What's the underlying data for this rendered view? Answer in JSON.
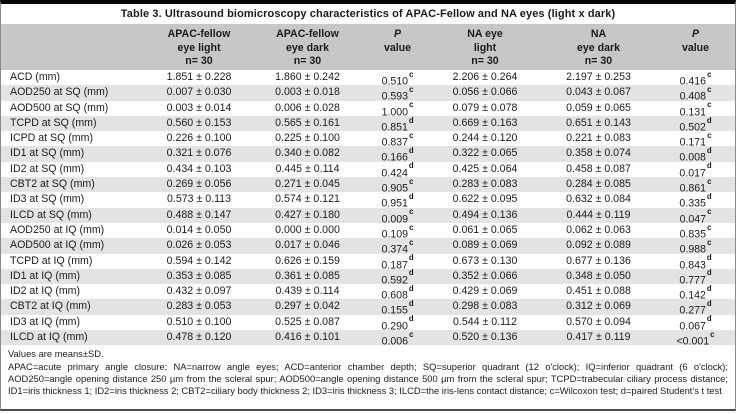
{
  "title": "Table 3. Ultrasound biomicroscopy characteristics of APAC-Fellow and NA eyes (light x dark)",
  "header": {
    "columns": [
      {
        "line1": "APAC-fellow",
        "line2": "eye light",
        "line3": "n= 30"
      },
      {
        "line1": "APAC-fellow",
        "line2": "eye dark",
        "line3": "n= 30"
      },
      {
        "line1": "P",
        "line2": "value",
        "line3": ""
      },
      {
        "line1": "NA eye",
        "line2": "light",
        "line3": "n= 30"
      },
      {
        "line1": "NA",
        "line2": "eye dark",
        "line3": "n= 30"
      },
      {
        "line1": "P",
        "line2": "value",
        "line3": ""
      }
    ]
  },
  "rows": [
    {
      "param": "ACD (mm)",
      "apac_light": "1.851 ± 0.228",
      "apac_dark": "1.860 ± 0.242",
      "p1": "0.510",
      "p1_sup": "c",
      "na_light": "2.206 ± 0.264",
      "na_dark": "2.197 ± 0.253",
      "p2": "0.416",
      "p2_sup": "c"
    },
    {
      "param": "AOD250 at SQ (mm)",
      "apac_light": "0.007 ± 0.030",
      "apac_dark": "0.003 ± 0.018",
      "p1": "0.593",
      "p1_sup": "c",
      "na_light": "0.056 ± 0.066",
      "na_dark": "0.043 ± 0.067",
      "p2": "0.408",
      "p2_sup": "c"
    },
    {
      "param": "AOD500 at SQ (mm)",
      "apac_light": "0.003 ± 0.014",
      "apac_dark": "0.006 ± 0.028",
      "p1": "1.000",
      "p1_sup": "c",
      "na_light": "0.079 ± 0.078",
      "na_dark": "0.059 ± 0.065",
      "p2": "0.131",
      "p2_sup": "c"
    },
    {
      "param": "TCPD at SQ (mm)",
      "apac_light": "0.560 ± 0.153",
      "apac_dark": "0.565 ± 0.161",
      "p1": "0.851",
      "p1_sup": "d",
      "na_light": "0.669 ± 0.163",
      "na_dark": "0.651 ± 0.143",
      "p2": "0.502",
      "p2_sup": "d"
    },
    {
      "param": "ICPD at SQ (mm)",
      "apac_light": "0.226 ± 0.100",
      "apac_dark": "0.225 ± 0.100",
      "p1": "0.837",
      "p1_sup": "c",
      "na_light": "0.244 ± 0.120",
      "na_dark": "0.221 ± 0.083",
      "p2": "0.171",
      "p2_sup": "c"
    },
    {
      "param": "ID1 at SQ (mm)",
      "apac_light": "0.321 ± 0.076",
      "apac_dark": "0.340 ± 0.082",
      "p1": "0.166",
      "p1_sup": "d",
      "na_light": "0.322 ± 0.065",
      "na_dark": "0.358 ± 0.074",
      "p2": "0.008",
      "p2_sup": "d"
    },
    {
      "param": "ID2 at SQ (mm)",
      "apac_light": "0.434 ± 0.103",
      "apac_dark": "0.445 ± 0.114",
      "p1": "0.424",
      "p1_sup": "d",
      "na_light": "0.425 ± 0.064",
      "na_dark": "0.458 ± 0.087",
      "p2": "0.017",
      "p2_sup": "d"
    },
    {
      "param": "CBT2 at SQ (mm)",
      "apac_light": "0.269 ± 0.056",
      "apac_dark": "0.271 ± 0.045",
      "p1": "0.905",
      "p1_sup": "c",
      "na_light": "0.283 ± 0.083",
      "na_dark": "0.284 ± 0.085",
      "p2": "0.861",
      "p2_sup": "c"
    },
    {
      "param": "ID3 at SQ (mm)",
      "apac_light": "0.573 ± 0.113",
      "apac_dark": "0.574 ± 0.121",
      "p1": "0.951",
      "p1_sup": "d",
      "na_light": "0.622 ± 0.095",
      "na_dark": "0.632 ± 0.084",
      "p2": "0.335",
      "p2_sup": "d"
    },
    {
      "param": "ILCD at SQ (mm)",
      "apac_light": "0.488 ± 0.147",
      "apac_dark": "0.427 ± 0.180",
      "p1": "0.009",
      "p1_sup": "c",
      "na_light": "0.494 ± 0.136",
      "na_dark": "0.444 ± 0.119",
      "p2": "0.047",
      "p2_sup": "c"
    },
    {
      "param": "AOD250 at IQ (mm)",
      "apac_light": "0.014 ± 0.050",
      "apac_dark": "0.000 ± 0.000",
      "p1": "0.109",
      "p1_sup": "c",
      "na_light": "0.061 ± 0.065",
      "na_dark": "0.062 ± 0.063",
      "p2": "0.835",
      "p2_sup": "c"
    },
    {
      "param": "AOD500 at IQ (mm)",
      "apac_light": "0.026 ± 0.053",
      "apac_dark": "0.017 ± 0.046",
      "p1": "0.374",
      "p1_sup": "c",
      "na_light": "0.089 ± 0.069",
      "na_dark": "0.092 ± 0.089",
      "p2": "0.988",
      "p2_sup": "c"
    },
    {
      "param": "TCPD at IQ (mm)",
      "apac_light": "0.594 ± 0.142",
      "apac_dark": "0.626 ± 0.159",
      "p1": "0.187",
      "p1_sup": "d",
      "na_light": "0.673 ± 0.130",
      "na_dark": "0.677 ± 0.136",
      "p2": "0.843",
      "p2_sup": "d"
    },
    {
      "param": "ID1 at IQ (mm)",
      "apac_light": "0.353 ± 0.085",
      "apac_dark": "0.361 ± 0.085",
      "p1": "0.592",
      "p1_sup": "d",
      "na_light": "0.352 ± 0.066",
      "na_dark": "0.348 ± 0.050",
      "p2": "0.777",
      "p2_sup": "d"
    },
    {
      "param": "ID2 at IQ (mm)",
      "apac_light": "0.432 ± 0.097",
      "apac_dark": "0.439 ± 0.114",
      "p1": "0.608",
      "p1_sup": "d",
      "na_light": "0.429 ± 0.069",
      "na_dark": "0.451 ± 0.088",
      "p2": "0.142",
      "p2_sup": "d"
    },
    {
      "param": "CBT2 at IQ (mm)",
      "apac_light": "0.283 ± 0.053",
      "apac_dark": "0.297 ± 0.042",
      "p1": "0.155",
      "p1_sup": "d",
      "na_light": "0.298 ± 0.083",
      "na_dark": "0.312 ± 0.069",
      "p2": "0.277",
      "p2_sup": "d"
    },
    {
      "param": "ID3 at IQ (mm)",
      "apac_light": "0.510 ± 0.100",
      "apac_dark": "0.525 ± 0.087",
      "p1": "0.290",
      "p1_sup": "d",
      "na_light": "0.544 ± 0.112",
      "na_dark": "0.570 ± 0.094",
      "p2": "0.067",
      "p2_sup": "d"
    },
    {
      "param": "ILCD at IQ (mm)",
      "apac_light": "0.478 ± 0.120",
      "apac_dark": "0.416 ± 0.101",
      "p1": "0.006",
      "p1_sup": "c",
      "na_light": "0.520 ± 0.136",
      "na_dark": "0.417 ± 0.119",
      "p2": "<0.001",
      "p2_sup": "c"
    }
  ],
  "footnotes": {
    "line1": "Values are means±SD.",
    "line2": "APAC=acute primary angle closure; NA=narrow angle eyes; ACD=anterior chamber depth; SQ=superior quadrant (12 o'clock); IQ=inferior quadrant (6 o'clock); AOD250=angle opening distance 250 µm from the scleral spur; AOD500=angle opening distance 500 µm from the scleral spur; TCPD=trabecular ciliary process distance; ID1=iris thickness 1; ID2=iris thickness 2; CBT2=ciliary body thickness 2; ID3=iris thickness 3; ILCD=the iris-lens contact distance; c=Wilcoxon test; d=paired Student's t test"
  },
  "colors": {
    "header_bg": "#c7c7c7",
    "alt_row_bg": "#e3e3e3",
    "top_border": "#060606",
    "text": "#1b1b1b"
  }
}
